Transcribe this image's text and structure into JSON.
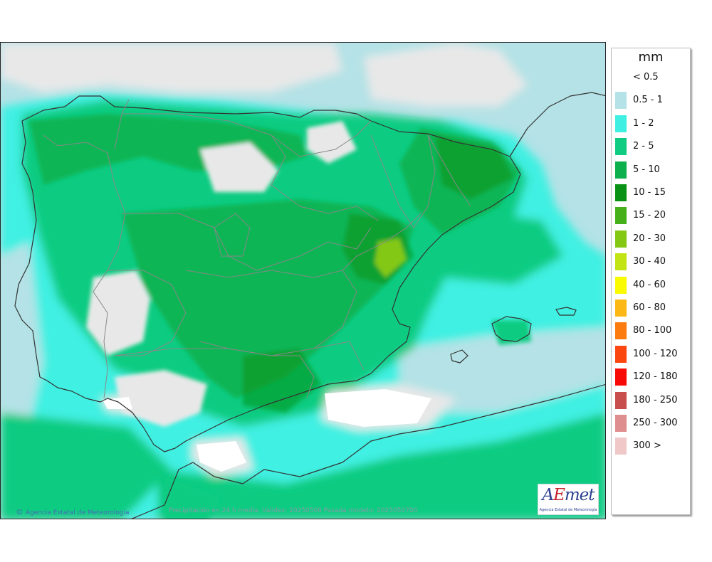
{
  "legend": {
    "unit": "mm",
    "items": [
      {
        "label": "< 0.5",
        "color": "#ffffff"
      },
      {
        "label": "0.5 - 1",
        "color": "#b4e2e6"
      },
      {
        "label": "1 - 2",
        "color": "#3ff0e2"
      },
      {
        "label": "2 - 5",
        "color": "#10cc82"
      },
      {
        "label": "5 - 10",
        "color": "#0cb04c"
      },
      {
        "label": "10 - 15",
        "color": "#0a9216"
      },
      {
        "label": "15 - 20",
        "color": "#46b01a"
      },
      {
        "label": "20 - 30",
        "color": "#84c814"
      },
      {
        "label": "30 - 40",
        "color": "#c2e414"
      },
      {
        "label": "40 - 60",
        "color": "#fafa00"
      },
      {
        "label": "60 - 80",
        "color": "#fcb814"
      },
      {
        "label": "80 - 100",
        "color": "#fc7c10"
      },
      {
        "label": "100 - 120",
        "color": "#fc4610"
      },
      {
        "label": "120 - 180",
        "color": "#f80a06"
      },
      {
        "label": "180 - 250",
        "color": "#c84e4e"
      },
      {
        "label": "250 - 300",
        "color": "#de8e8e"
      },
      {
        "label": "300 >",
        "color": "#f0c8c8"
      }
    ]
  },
  "footer": {
    "copyright_symbol": "©",
    "agency": "Agencia Estatal de Meteorología",
    "info": "Precipitación en 24 h media. Validez: 20250508 Pasada modelo: 2025050700"
  },
  "logo": {
    "word_a": "A",
    "word_e": "E",
    "word_rest": "met",
    "subtitle": "Agencia Estatal de Meteorología"
  },
  "map": {
    "colors": {
      "sea_base": "#d7eef0",
      "dry": "#e8e8e8",
      "light": "#b4e2e6",
      "cyan": "#3ff0e2",
      "green1": "#10cc82",
      "green2": "#0cb04c",
      "green3": "#0a9216",
      "green4": "#46b01a",
      "green5": "#84c814",
      "border_land": "#333333",
      "border_region": "#888888"
    }
  }
}
